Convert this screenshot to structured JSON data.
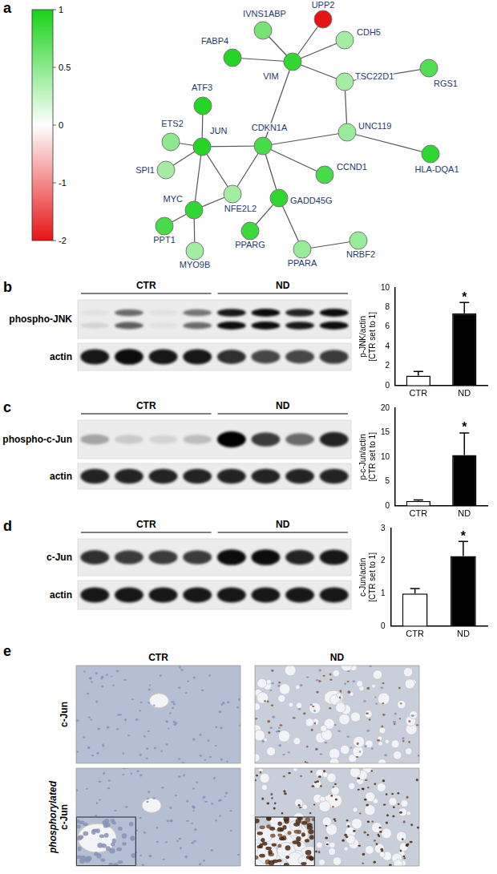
{
  "panel_labels": [
    "a",
    "b",
    "c",
    "d",
    "e"
  ],
  "network": {
    "colorbar": {
      "range": [
        -2,
        1
      ],
      "ticks": [
        1,
        0.5,
        0,
        -1,
        -2
      ]
    },
    "nodes": [
      {
        "label": "UPP2",
        "value": -2
      },
      {
        "label": "IVNS1ABP",
        "value": 0.6
      },
      {
        "label": "CDH5",
        "value": 0.4
      },
      {
        "label": "FABP4",
        "value": 0.95
      },
      {
        "label": "VIM",
        "value": 0.9
      },
      {
        "label": "TSC22D1",
        "value": 0.4
      },
      {
        "label": "RGS1",
        "value": 0.75
      },
      {
        "label": "ATF3",
        "value": 0.95
      },
      {
        "label": "ETS2",
        "value": 0.5
      },
      {
        "label": "JUN",
        "value": 0.95
      },
      {
        "label": "SPI1",
        "value": 0.4
      },
      {
        "label": "CDKN1A",
        "value": 0.8
      },
      {
        "label": "UNC119",
        "value": 0.45
      },
      {
        "label": "HLA-DQA1",
        "value": 0.9
      },
      {
        "label": "CCND1",
        "value": 0.8
      },
      {
        "label": "GADD45G",
        "value": 0.9
      },
      {
        "label": "NFE2L2",
        "value": 0.4
      },
      {
        "label": "MYC",
        "value": 0.9
      },
      {
        "label": "PPT1",
        "value": 0.8
      },
      {
        "label": "PPARG",
        "value": 0.85
      },
      {
        "label": "PPARA",
        "value": 0.45
      },
      {
        "label": "NRBF2",
        "value": 0.45
      },
      {
        "label": "MYO9B",
        "value": 0.4
      }
    ],
    "edges": [
      [
        "VIM",
        "UPP2"
      ],
      [
        "VIM",
        "IVNS1ABP"
      ],
      [
        "VIM",
        "CDH5"
      ],
      [
        "VIM",
        "FABP4"
      ],
      [
        "VIM",
        "TSC22D1"
      ],
      [
        "VIM",
        "CDKN1A"
      ],
      [
        "TSC22D1",
        "RGS1"
      ],
      [
        "TSC22D1",
        "UNC119"
      ],
      [
        "UNC119",
        "HLA-DQA1"
      ],
      [
        "UNC119",
        "CDKN1A"
      ],
      [
        "CDKN1A",
        "JUN"
      ],
      [
        "CDKN1A",
        "CCND1"
      ],
      [
        "CDKN1A",
        "GADD45G"
      ],
      [
        "CDKN1A",
        "NFE2L2"
      ],
      [
        "JUN",
        "ATF3"
      ],
      [
        "JUN",
        "ETS2"
      ],
      [
        "JUN",
        "SPI1"
      ],
      [
        "JUN",
        "MYC"
      ],
      [
        "JUN",
        "NFE2L2"
      ],
      [
        "MYC",
        "NFE2L2"
      ],
      [
        "MYC",
        "PPT1"
      ],
      [
        "MYC",
        "MYO9B"
      ],
      [
        "GADD45G",
        "PPARG"
      ],
      [
        "GADD45G",
        "PPARA"
      ],
      [
        "PPARA",
        "NRBF2"
      ]
    ]
  },
  "blots": [
    {
      "groups": [
        {
          "label": "CTR",
          "lanes": 4
        },
        {
          "label": "ND",
          "lanes": 4
        }
      ],
      "rows": [
        {
          "label": "phospho-JNK",
          "bands": [
            [
              0.05,
              0.55,
              0.05,
              0.5,
              0.9,
              0.95,
              0.85,
              0.95
            ],
            [
              0.1,
              0.6,
              0.05,
              0.55,
              0.95,
              0.95,
              0.9,
              0.95
            ]
          ]
        },
        {
          "label": "actin",
          "bands": [
            [
              0.9,
              0.95,
              0.9,
              0.9,
              0.8,
              0.7,
              0.7,
              0.75
            ]
          ]
        }
      ]
    },
    {
      "groups": [
        {
          "label": "CTR",
          "lanes": 4
        },
        {
          "label": "ND",
          "lanes": 4
        }
      ],
      "rows": [
        {
          "label": "phospho-c-Jun",
          "bands": [
            [
              0.3,
              0.15,
              0.1,
              0.2,
              1.0,
              0.75,
              0.55,
              0.85
            ]
          ]
        },
        {
          "label": "actin",
          "bands": [
            [
              0.85,
              0.85,
              0.85,
              0.85,
              0.85,
              0.85,
              0.85,
              0.85
            ]
          ]
        }
      ]
    },
    {
      "groups": [
        {
          "label": "CTR",
          "lanes": 4
        },
        {
          "label": "ND",
          "lanes": 4
        }
      ],
      "rows": [
        {
          "label": "c-Jun",
          "bands": [
            [
              0.8,
              0.75,
              0.75,
              0.75,
              0.95,
              0.95,
              0.85,
              0.9
            ]
          ]
        },
        {
          "label": "actin",
          "bands": [
            [
              0.9,
              0.9,
              0.9,
              0.9,
              0.9,
              0.9,
              0.9,
              0.9
            ]
          ]
        }
      ]
    }
  ],
  "chart_data": [
    {
      "type": "bar",
      "ylabel": [
        "p-JNK/actin",
        "[CTR set to 1]"
      ],
      "categories": [
        "CTR",
        "ND"
      ],
      "values": [
        1,
        7.4
      ],
      "errors": [
        0.45,
        1.1
      ],
      "colors": [
        "#ffffff",
        "#000000"
      ],
      "ylim": [
        0,
        10
      ],
      "yticks": [
        0,
        2,
        4,
        6,
        8,
        10
      ],
      "grid": false,
      "annotations": [
        {
          "category": "ND",
          "text": "*"
        }
      ]
    },
    {
      "type": "bar",
      "ylabel": [
        "p-c-Jun/actin",
        "[CTR set to 1]"
      ],
      "categories": [
        "CTR",
        "ND"
      ],
      "values": [
        1,
        10.4
      ],
      "errors": [
        0.2,
        4.5
      ],
      "colors": [
        "#ffffff",
        "#000000"
      ],
      "ylim": [
        0,
        20
      ],
      "yticks": [
        0,
        5,
        10,
        15,
        20
      ],
      "grid": false,
      "annotations": [
        {
          "category": "ND",
          "text": "*"
        }
      ]
    },
    {
      "type": "bar",
      "ylabel": [
        "c-Jun/actin",
        "[CTR set to 1]"
      ],
      "categories": [
        "CTR",
        "ND"
      ],
      "values": [
        1,
        2.15
      ],
      "errors": [
        0.15,
        0.45
      ],
      "colors": [
        "#ffffff",
        "#000000"
      ],
      "ylim": [
        0,
        3
      ],
      "yticks": [
        0,
        1,
        2,
        3
      ],
      "grid": false,
      "annotations": [
        {
          "category": "ND",
          "text": "*"
        }
      ]
    }
  ],
  "histology": {
    "columns": [
      "CTR",
      "ND"
    ],
    "rows": [
      "c-Jun",
      "phosphorylated c-Jun"
    ]
  }
}
